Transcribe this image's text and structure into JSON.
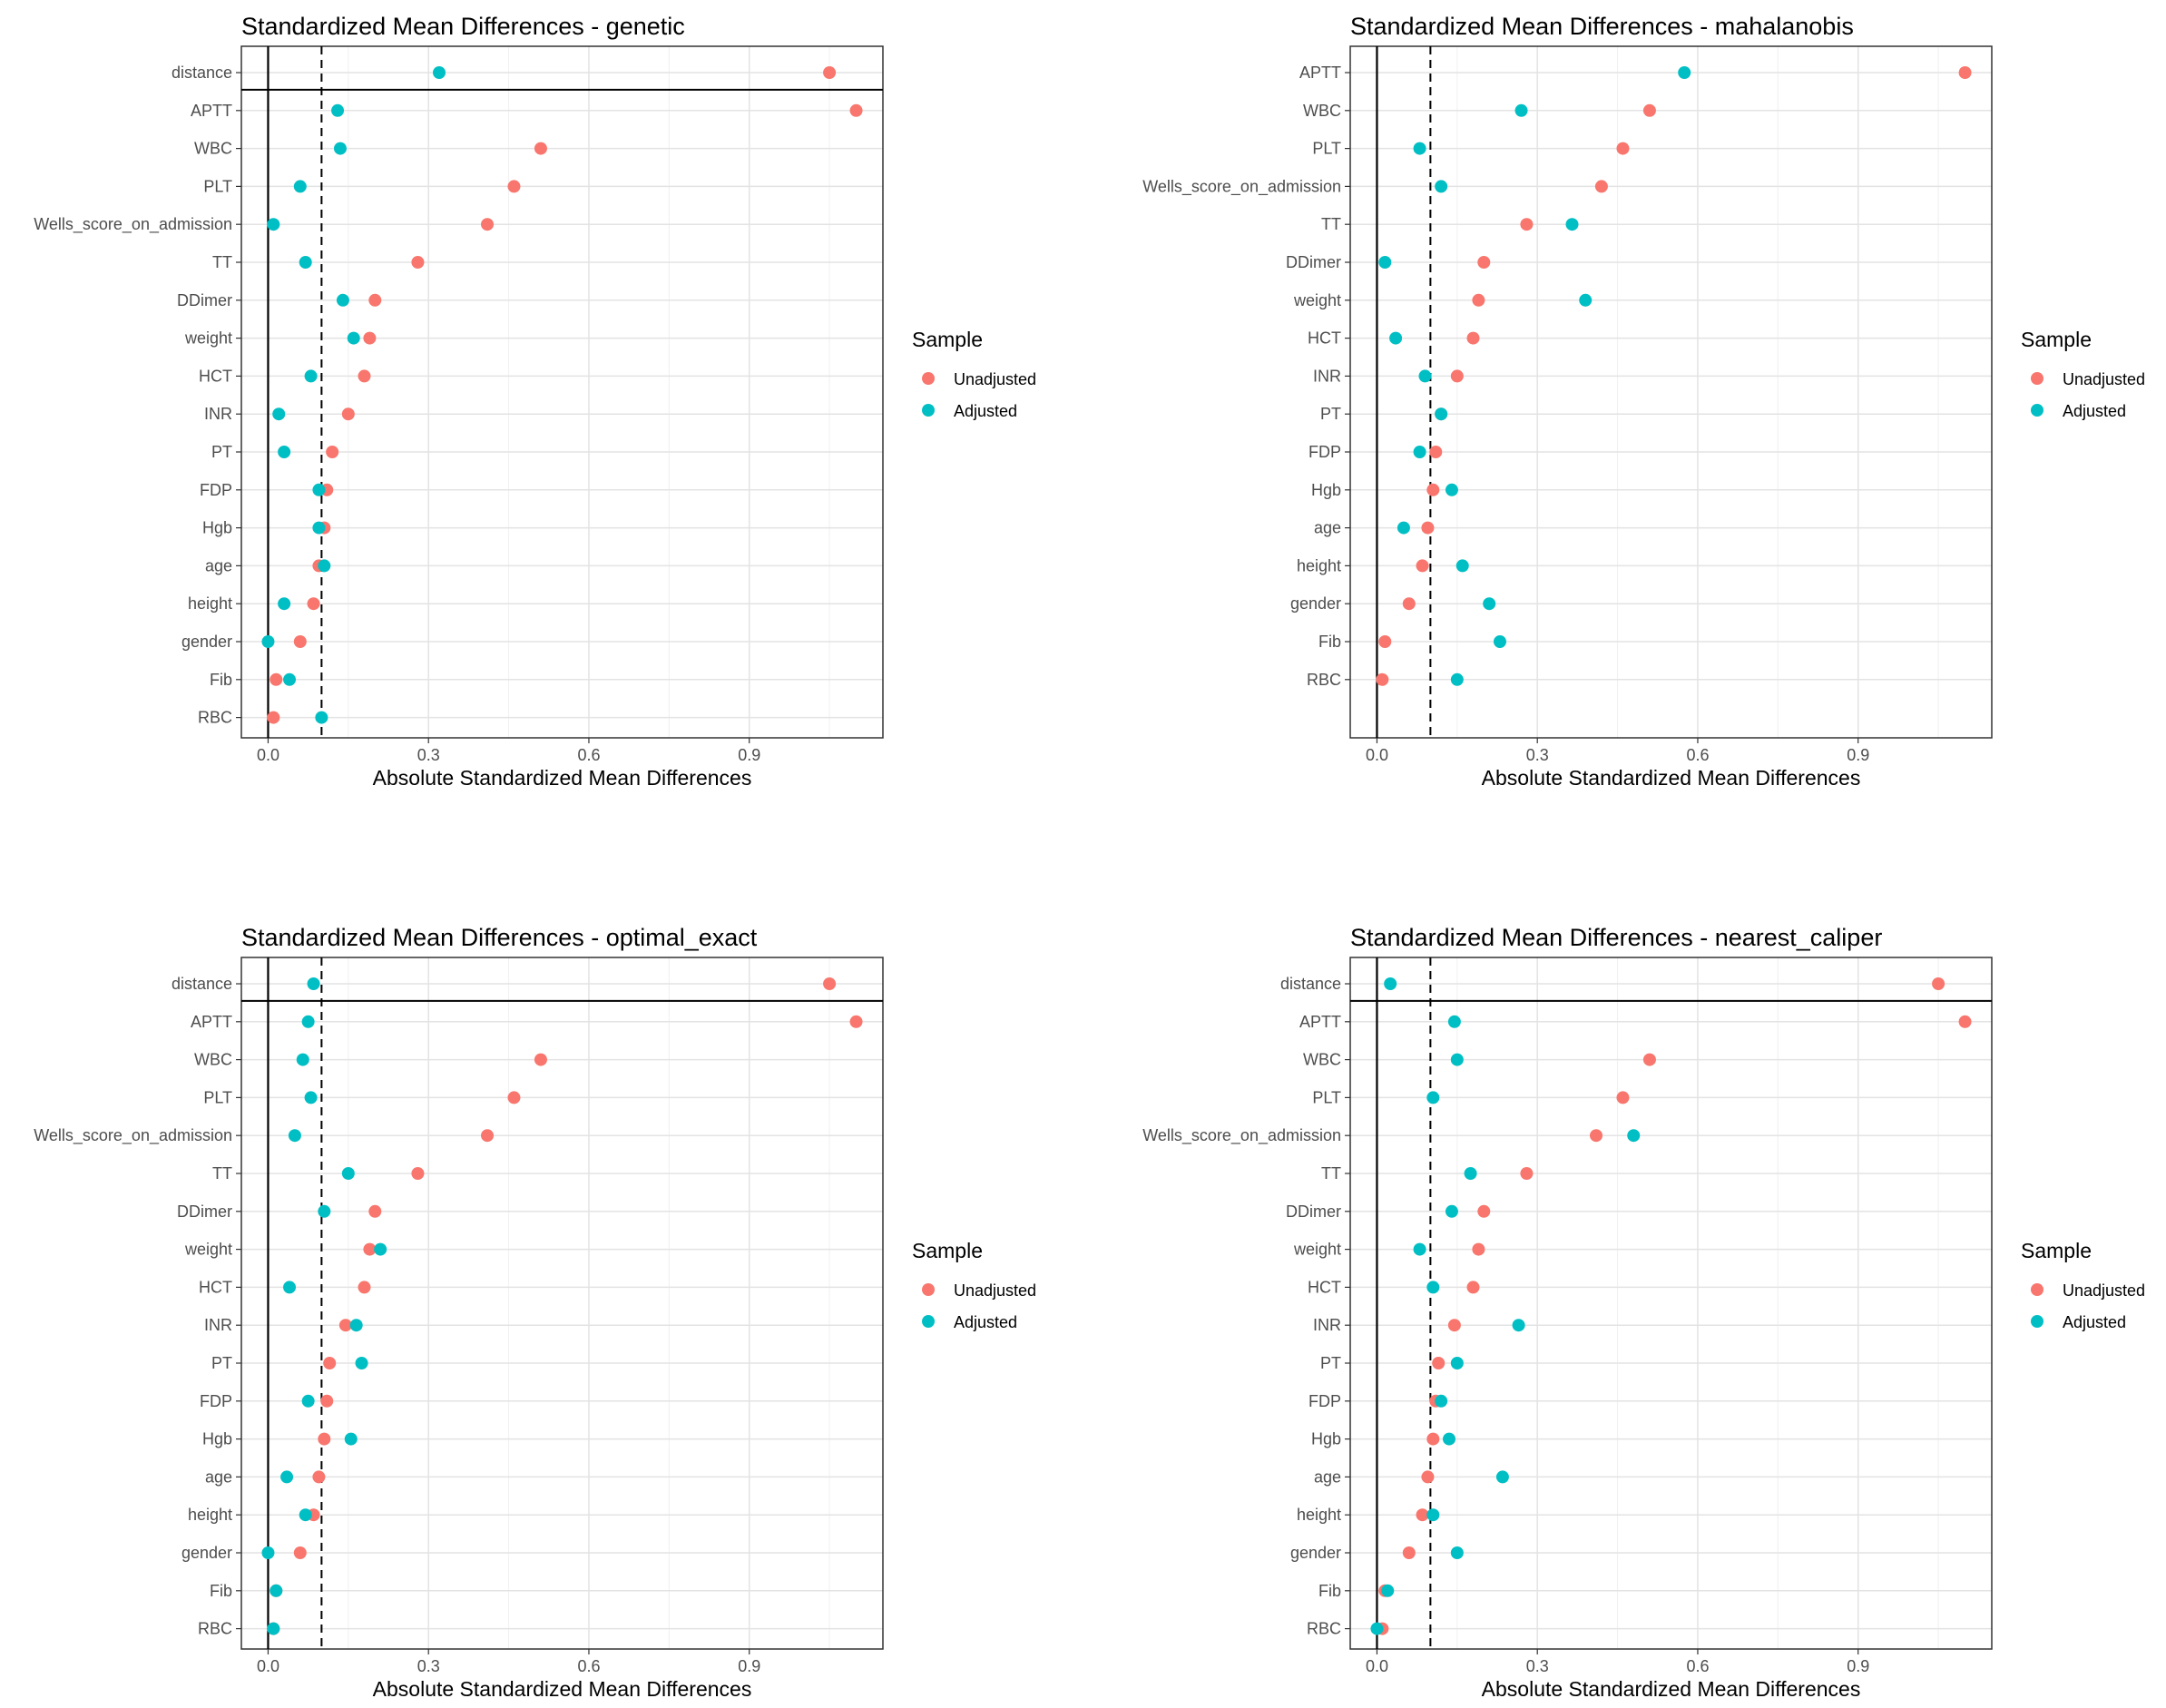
{
  "legend": {
    "title": "Sample",
    "unadjusted_label": "Unadjusted",
    "adjusted_label": "Adjusted",
    "unadjusted_color": "#F8766D",
    "adjusted_color": "#00BFC4"
  },
  "chart_data": [
    {
      "type": "scatter",
      "title": "Standardized Mean Differences - genetic",
      "xlabel": "Absolute Standardized Mean Differences",
      "ylabel": "",
      "xlim": [
        -0.05,
        1.15
      ],
      "xticks": [
        "0.0",
        "0.3",
        "0.6",
        "0.9"
      ],
      "threshold": 0.1,
      "grid": true,
      "legend_position": "right",
      "categories": [
        "distance",
        "APTT",
        "WBC",
        "PLT",
        "Wells_score_on_admission",
        "TT",
        "DDimer",
        "weight",
        "HCT",
        "INR",
        "PT",
        "FDP",
        "Hgb",
        "age",
        "height",
        "gender",
        "Fib",
        "RBC"
      ],
      "separator_after": "distance",
      "series": [
        {
          "name": "Unadjusted",
          "values": [
            1.05,
            1.1,
            0.51,
            0.46,
            0.41,
            0.28,
            0.2,
            0.19,
            0.18,
            0.15,
            0.12,
            0.11,
            0.105,
            0.095,
            0.085,
            0.06,
            0.015,
            0.01
          ]
        },
        {
          "name": "Adjusted",
          "values": [
            0.32,
            0.13,
            0.135,
            0.06,
            0.01,
            0.07,
            0.14,
            0.16,
            0.08,
            0.02,
            0.03,
            0.095,
            0.095,
            0.105,
            0.03,
            0.0,
            0.04,
            0.1
          ]
        }
      ]
    },
    {
      "type": "scatter",
      "title": "Standardized Mean Differences - mahalanobis",
      "xlabel": "Absolute Standardized Mean Differences",
      "ylabel": "",
      "xlim": [
        -0.05,
        1.15
      ],
      "xticks": [
        "0.0",
        "0.3",
        "0.6",
        "0.9"
      ],
      "threshold": 0.1,
      "grid": true,
      "legend_position": "right",
      "categories": [
        "APTT",
        "WBC",
        "PLT",
        "Wells_score_on_admission",
        "TT",
        "DDimer",
        "weight",
        "HCT",
        "INR",
        "PT",
        "FDP",
        "Hgb",
        "age",
        "height",
        "gender",
        "Fib",
        "RBC"
      ],
      "separator_after": null,
      "series": [
        {
          "name": "Unadjusted",
          "values": [
            1.1,
            0.51,
            0.46,
            0.42,
            0.28,
            0.2,
            0.19,
            0.18,
            0.15,
            0.12,
            0.11,
            0.105,
            0.095,
            0.085,
            0.06,
            0.015,
            0.01
          ]
        },
        {
          "name": "Adjusted",
          "values": [
            0.575,
            0.27,
            0.08,
            0.12,
            0.365,
            0.015,
            0.39,
            0.035,
            0.09,
            0.12,
            0.08,
            0.14,
            0.05,
            0.16,
            0.21,
            0.23,
            0.15
          ]
        }
      ]
    },
    {
      "type": "scatter",
      "title": "Standardized Mean Differences - optimal_exact",
      "xlabel": "Absolute Standardized Mean Differences",
      "ylabel": "",
      "xlim": [
        -0.05,
        1.15
      ],
      "xticks": [
        "0.0",
        "0.3",
        "0.6",
        "0.9"
      ],
      "threshold": 0.1,
      "grid": true,
      "legend_position": "right",
      "categories": [
        "distance",
        "APTT",
        "WBC",
        "PLT",
        "Wells_score_on_admission",
        "TT",
        "DDimer",
        "weight",
        "HCT",
        "INR",
        "PT",
        "FDP",
        "Hgb",
        "age",
        "height",
        "gender",
        "Fib",
        "RBC"
      ],
      "separator_after": "distance",
      "series": [
        {
          "name": "Unadjusted",
          "values": [
            1.05,
            1.1,
            0.51,
            0.46,
            0.41,
            0.28,
            0.2,
            0.19,
            0.18,
            0.145,
            0.115,
            0.11,
            0.105,
            0.095,
            0.085,
            0.06,
            0.015,
            0.01
          ]
        },
        {
          "name": "Adjusted",
          "values": [
            0.085,
            0.075,
            0.065,
            0.08,
            0.05,
            0.15,
            0.105,
            0.21,
            0.04,
            0.165,
            0.175,
            0.075,
            0.155,
            0.035,
            0.07,
            0.0,
            0.015,
            0.01
          ]
        }
      ]
    },
    {
      "type": "scatter",
      "title": "Standardized Mean Differences - nearest_caliper",
      "xlabel": "Absolute Standardized Mean Differences",
      "ylabel": "",
      "xlim": [
        -0.05,
        1.15
      ],
      "xticks": [
        "0.0",
        "0.3",
        "0.6",
        "0.9"
      ],
      "threshold": 0.1,
      "grid": true,
      "legend_position": "right",
      "categories": [
        "distance",
        "APTT",
        "WBC",
        "PLT",
        "Wells_score_on_admission",
        "TT",
        "DDimer",
        "weight",
        "HCT",
        "INR",
        "PT",
        "FDP",
        "Hgb",
        "age",
        "height",
        "gender",
        "Fib",
        "RBC"
      ],
      "separator_after": "distance",
      "series": [
        {
          "name": "Unadjusted",
          "values": [
            1.05,
            1.1,
            0.51,
            0.46,
            0.41,
            0.28,
            0.2,
            0.19,
            0.18,
            0.145,
            0.115,
            0.11,
            0.105,
            0.095,
            0.085,
            0.06,
            0.015,
            0.01
          ]
        },
        {
          "name": "Adjusted",
          "values": [
            0.025,
            0.145,
            0.15,
            0.105,
            0.48,
            0.175,
            0.14,
            0.08,
            0.105,
            0.265,
            0.15,
            0.12,
            0.135,
            0.235,
            0.105,
            0.15,
            0.02,
            0.0
          ]
        }
      ]
    }
  ]
}
